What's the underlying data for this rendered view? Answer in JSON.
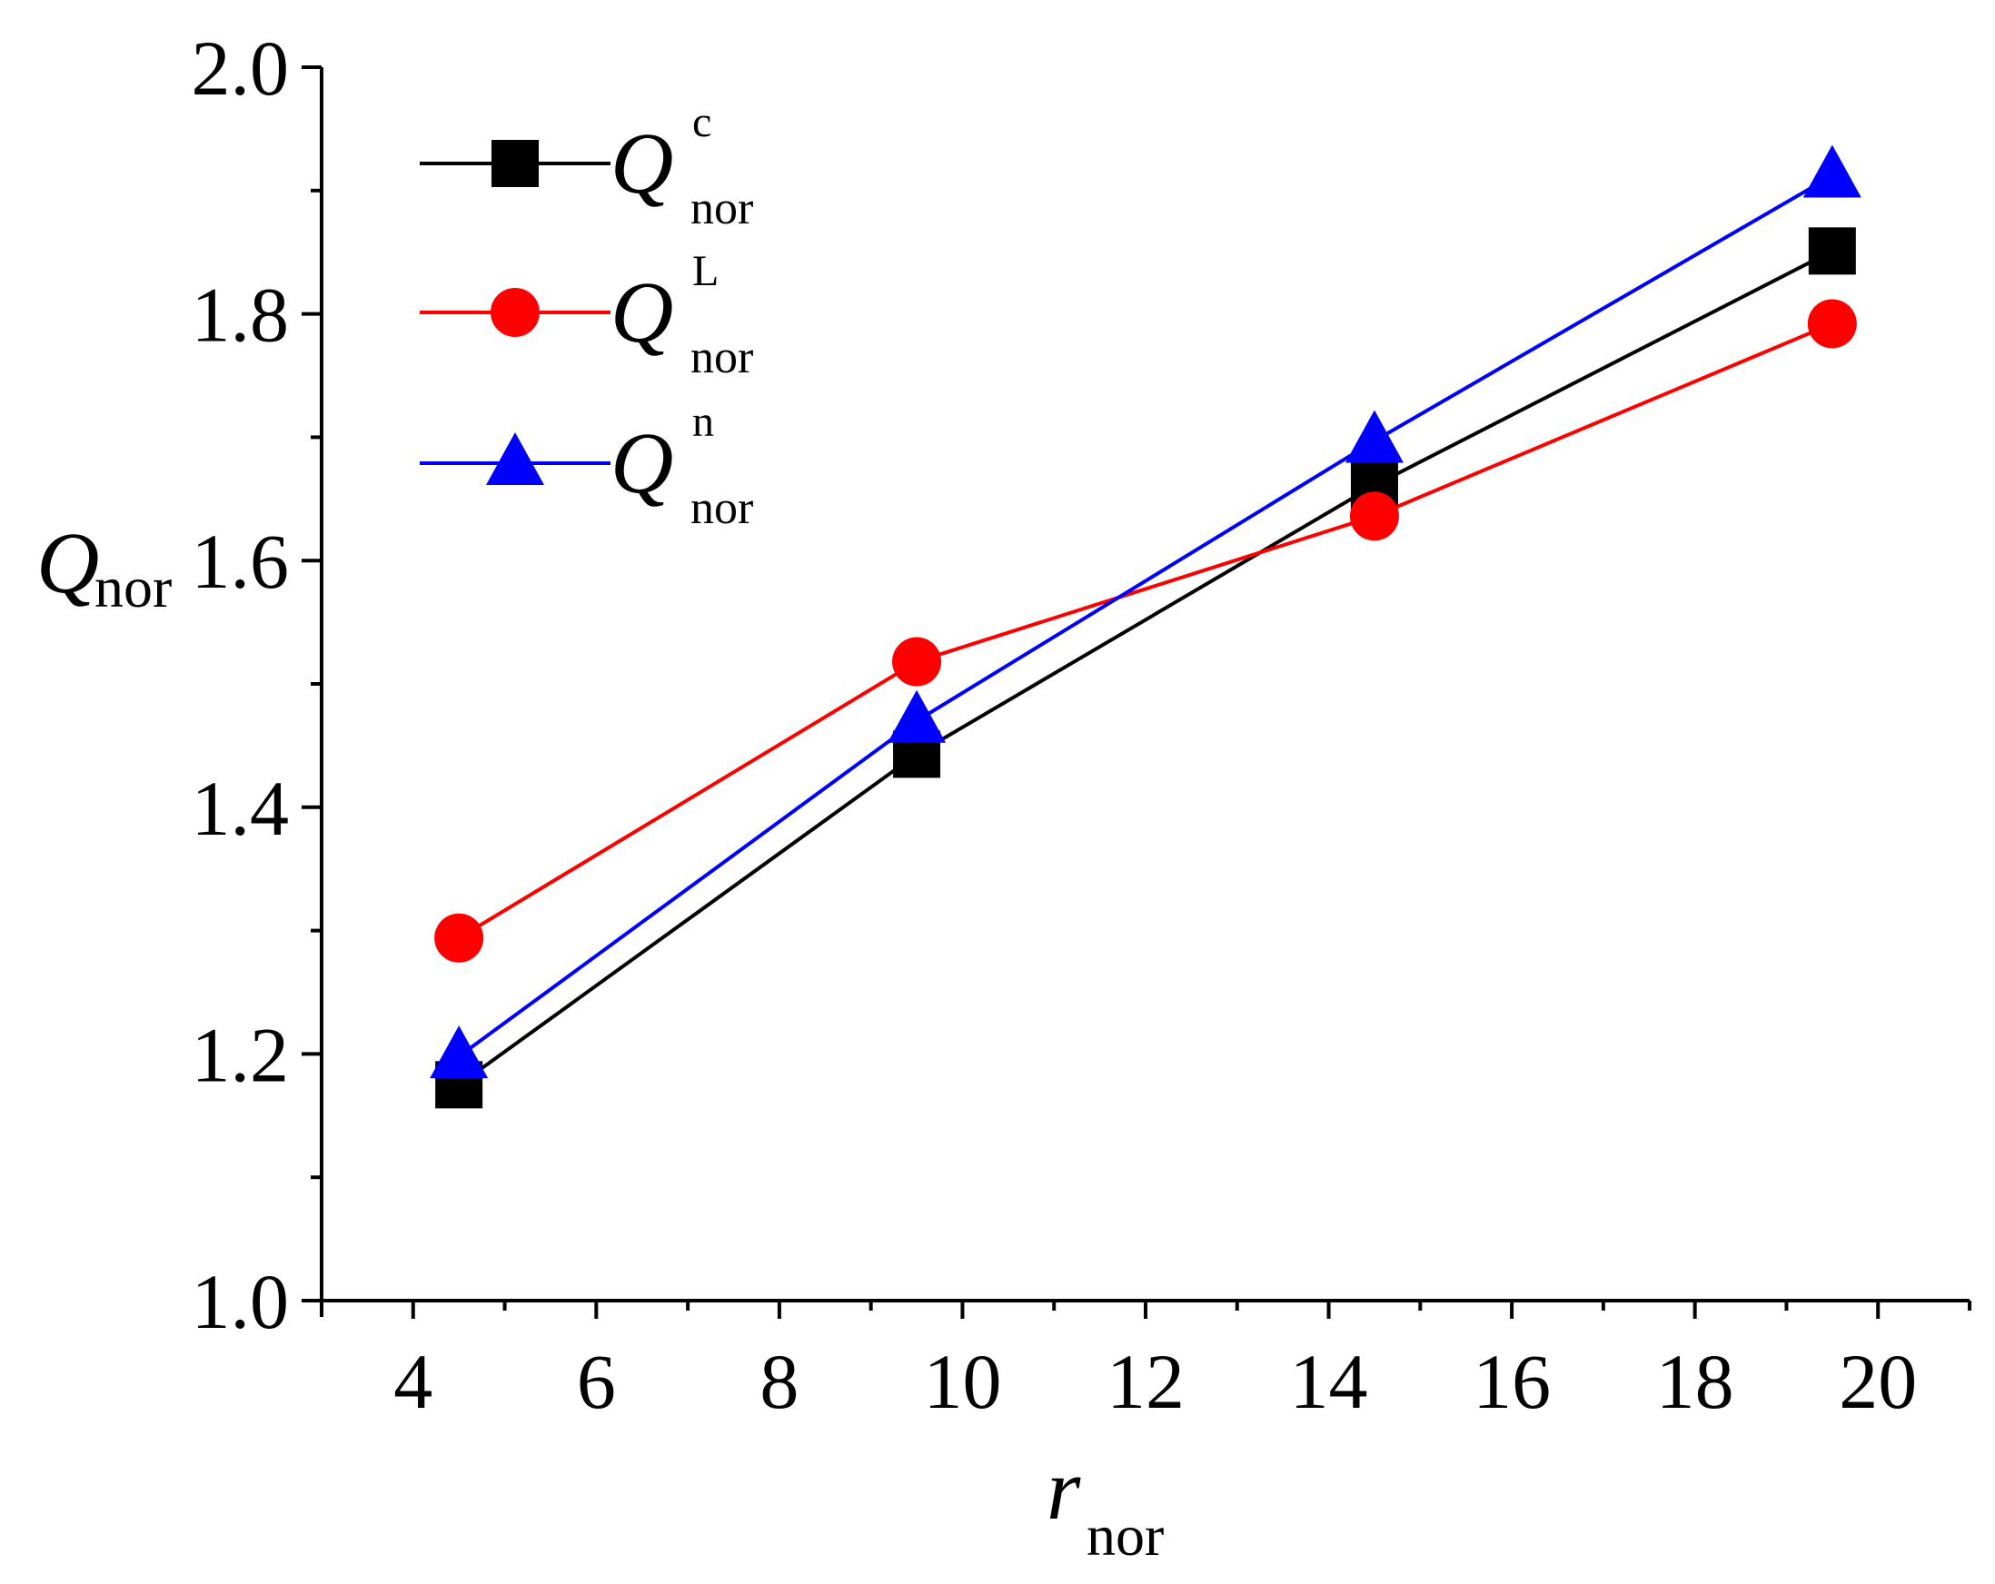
{
  "chart_data": {
    "type": "line",
    "title": "",
    "x": [
      4.5,
      9.5,
      14.5,
      19.5
    ],
    "series": [
      {
        "name": "Q_nor^c",
        "symbol": "Q",
        "superscript": "c",
        "subscript": "nor",
        "marker": "square",
        "color": "#000000",
        "values": [
          1.175,
          1.443,
          1.661,
          1.851
        ]
      },
      {
        "name": "Q_nor^L",
        "symbol": "Q",
        "superscript": "L",
        "subscript": "nor",
        "marker": "circle",
        "color": "#ff0000",
        "values": [
          1.294,
          1.518,
          1.636,
          1.792
        ]
      },
      {
        "name": "Q_nor^n",
        "symbol": "Q",
        "superscript": "n",
        "subscript": "nor",
        "marker": "triangle",
        "color": "#0000ff",
        "values": [
          1.198,
          1.47,
          1.697,
          1.912
        ]
      }
    ],
    "xlabel": {
      "symbol": "r",
      "subscript": "nor"
    },
    "ylabel": {
      "symbol": "Q",
      "subscript": "nor"
    },
    "xlim": [
      3,
      21
    ],
    "ylim": [
      1.0,
      2.0
    ],
    "x_ticks": [
      4,
      6,
      8,
      10,
      12,
      14,
      16,
      18,
      20
    ],
    "x_tick_labels": [
      "4",
      "6",
      "8",
      "10",
      "12",
      "14",
      "16",
      "18",
      "20"
    ],
    "y_ticks": [
      1.0,
      1.2,
      1.4,
      1.6,
      1.8,
      2.0
    ],
    "y_tick_labels": [
      "1.0",
      "1.2",
      "1.4",
      "1.6",
      "1.8",
      "2.0"
    ],
    "legend_position": "top-left",
    "grid": false
  }
}
